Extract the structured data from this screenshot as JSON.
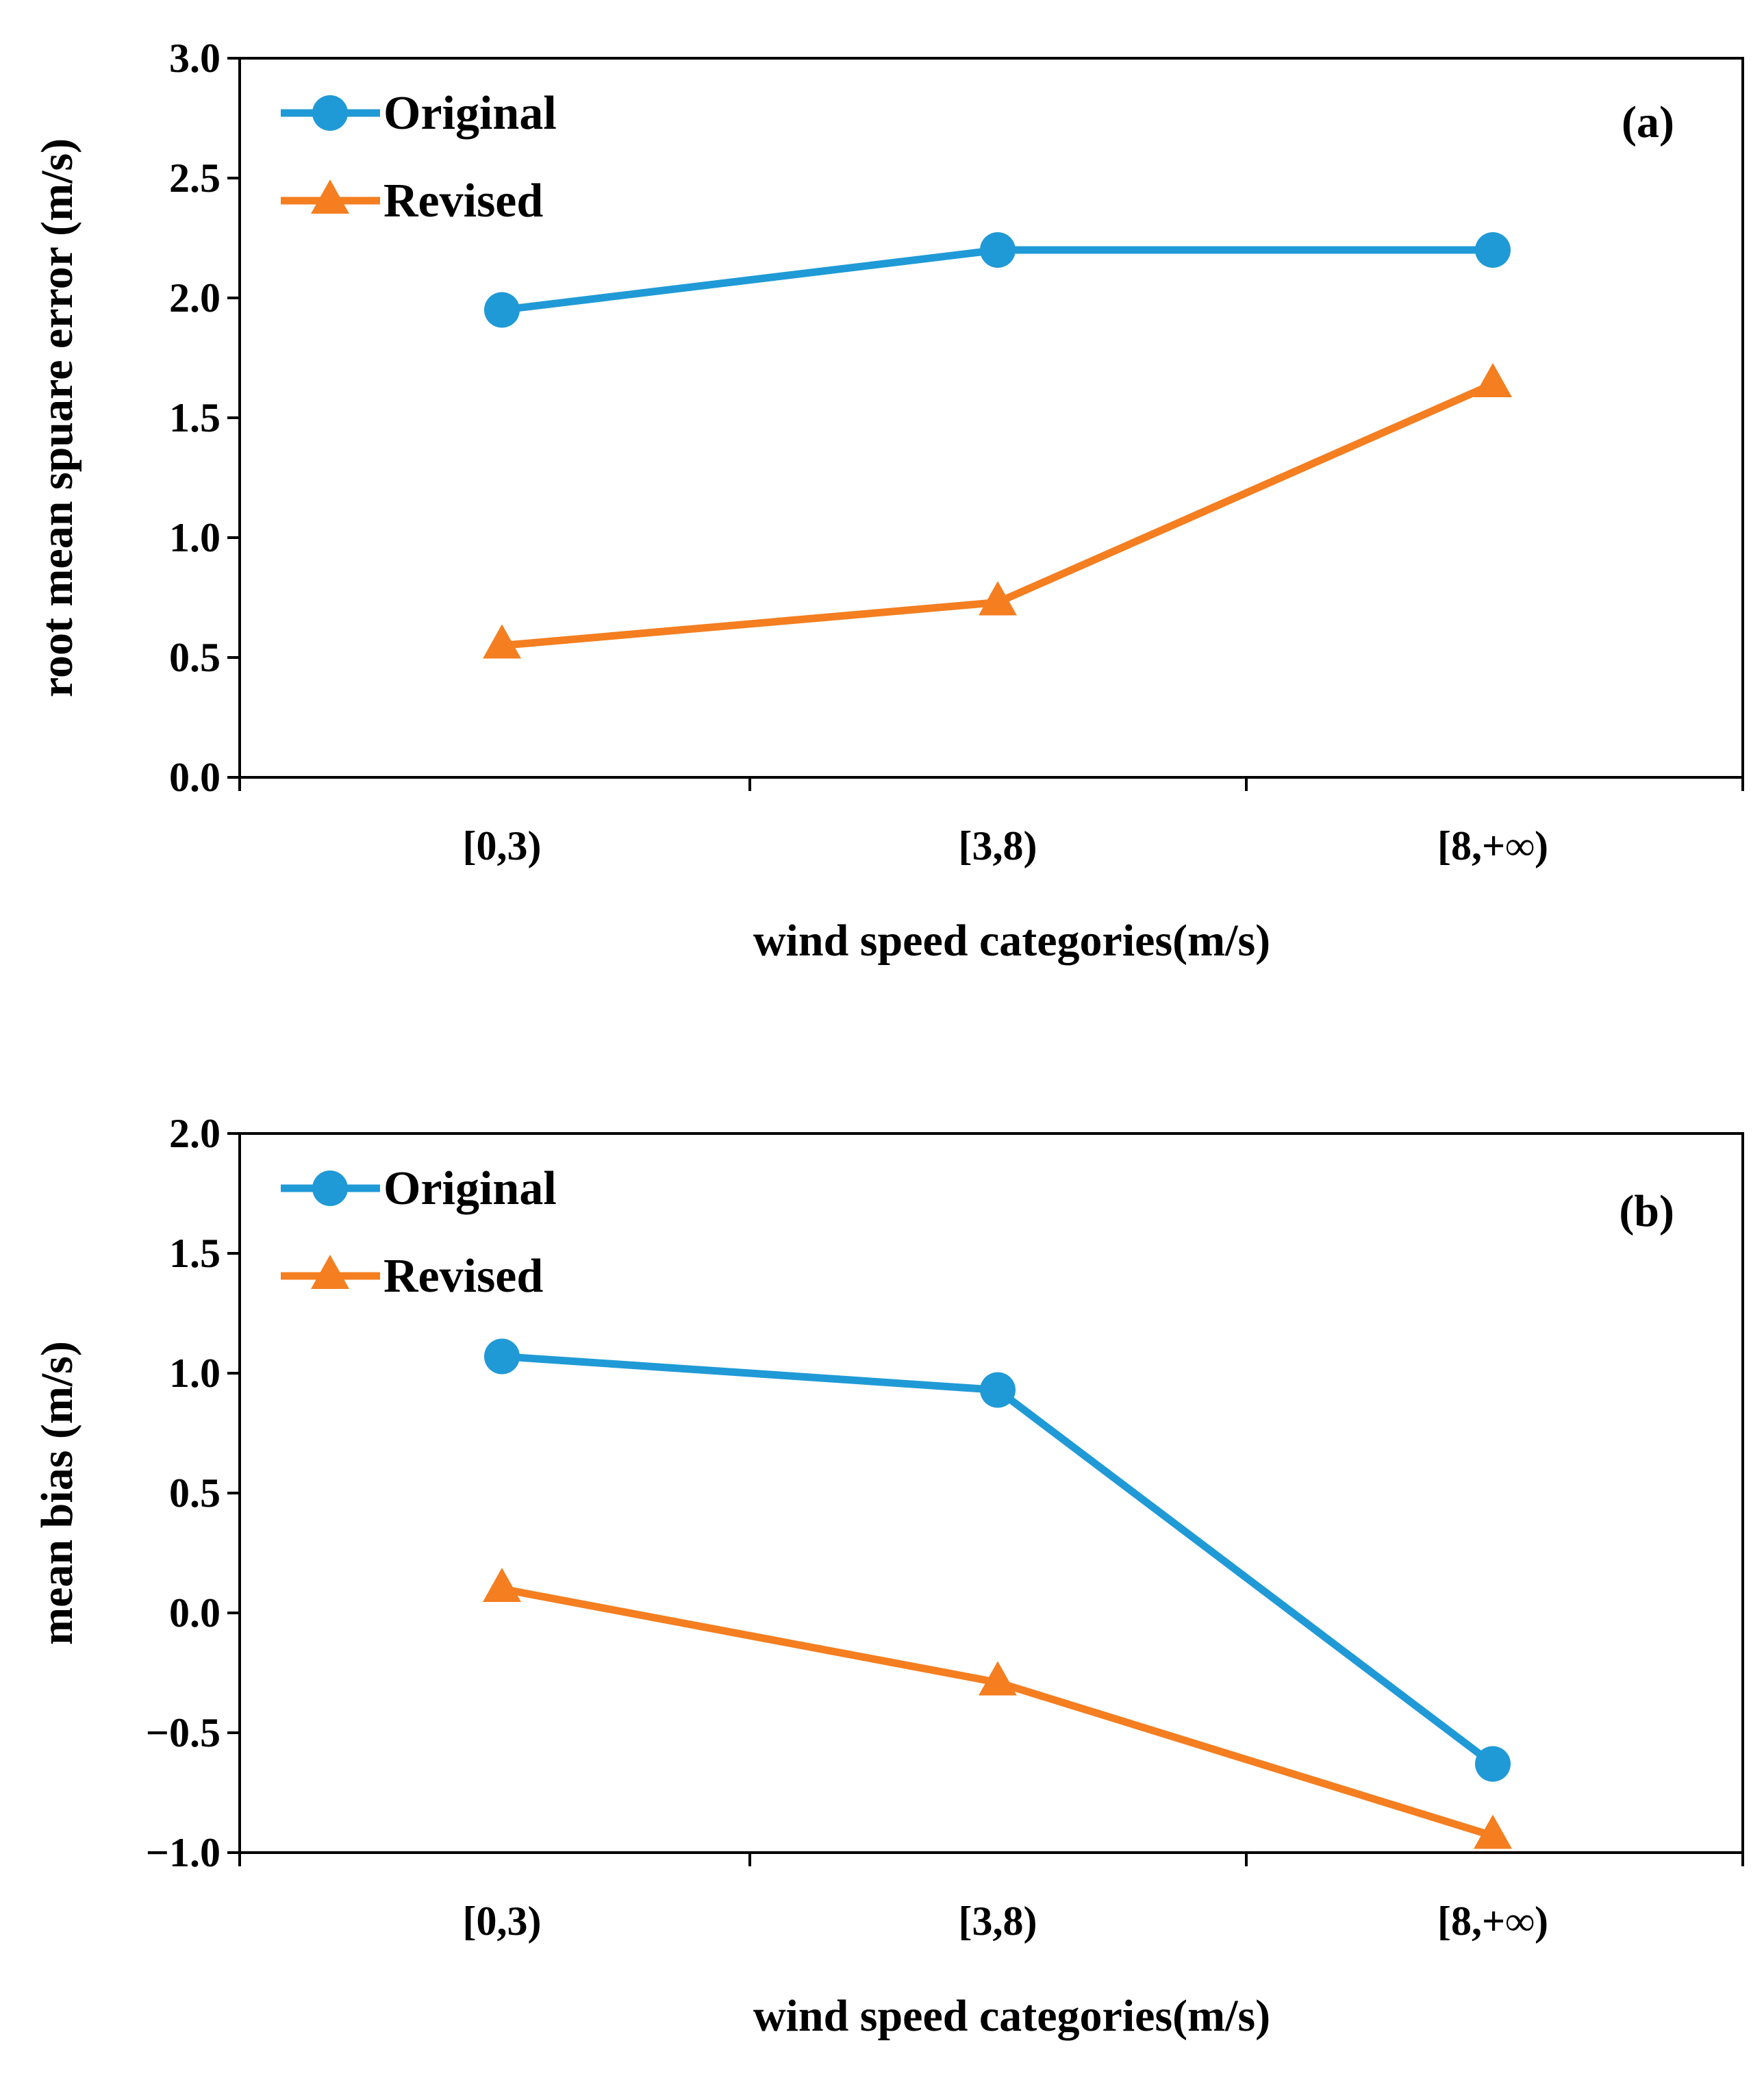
{
  "chart_data": [
    {
      "type": "line",
      "panel_label": "(a)",
      "categories": [
        "[0,3)",
        "[3,8)",
        "[8,+∞)"
      ],
      "ylabel": "root mean spuare error (m/s)",
      "xlabel": "wind speed categories(m/s)",
      "ylim": [
        0.0,
        3.0
      ],
      "ytick_labels": [
        "0.0",
        "0.5",
        "1.0",
        "1.5",
        "2.0",
        "2.5",
        "3.0"
      ],
      "grid": false,
      "legend_position": "top-left",
      "series": [
        {
          "name": "Original",
          "marker": "circle",
          "color": "#1f9ad6",
          "values": [
            1.95,
            2.2,
            2.2
          ]
        },
        {
          "name": "Revised",
          "marker": "triangle",
          "color": "#f47e20",
          "values": [
            0.55,
            0.73,
            1.64
          ]
        }
      ]
    },
    {
      "type": "line",
      "panel_label": "(b)",
      "categories": [
        "[0,3)",
        "[3,8)",
        "[8,+∞)"
      ],
      "ylabel": "mean bias (m/s)",
      "xlabel": "wind speed categories(m/s)",
      "ylim": [
        -1.0,
        2.0
      ],
      "ytick_labels": [
        "−1.0",
        "−0.5",
        "0.0",
        "0.5",
        "1.0",
        "1.5",
        "2.0"
      ],
      "grid": false,
      "legend_position": "top-left",
      "series": [
        {
          "name": "Original",
          "marker": "circle",
          "color": "#1f9ad6",
          "values": [
            1.07,
            0.93,
            -0.63
          ]
        },
        {
          "name": "Revised",
          "marker": "triangle",
          "color": "#f47e20",
          "values": [
            0.1,
            -0.29,
            -0.93
          ]
        }
      ]
    }
  ]
}
